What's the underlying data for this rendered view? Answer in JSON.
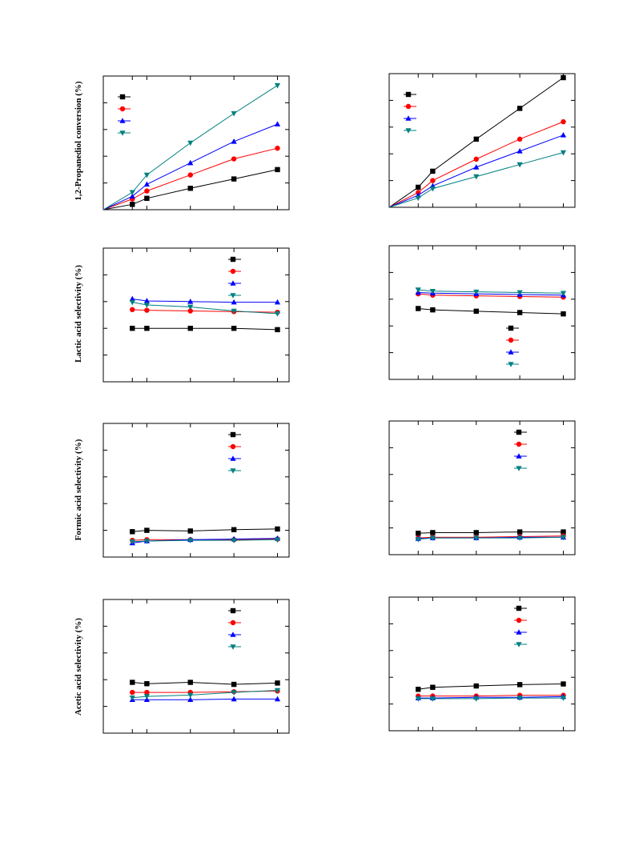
{
  "figure": {
    "series_colors": [
      "#000000",
      "#ff0000",
      "#0000ff",
      "#008080"
    ],
    "series_markers": [
      "square",
      "circle",
      "triangle-up",
      "triangle-down"
    ]
  },
  "chart_data": [
    {
      "type": "line",
      "ylabel": "1,2-Propanediol conversion (%)",
      "x": [
        1,
        1.5,
        3,
        4.5,
        6
      ],
      "xlim": [
        0,
        6.4
      ],
      "ylim": [
        0,
        100
      ],
      "legend": "top-left",
      "series": [
        {
          "values": [
            4,
            8.5,
            16,
            23,
            30
          ]
        },
        {
          "values": [
            8,
            14,
            26,
            38,
            46
          ]
        },
        {
          "values": [
            10,
            19,
            35,
            51,
            64
          ]
        },
        {
          "values": [
            13,
            26,
            50,
            72,
            93
          ]
        }
      ]
    },
    {
      "type": "line",
      "ylabel": "",
      "x": [
        1,
        1.5,
        3,
        4.5,
        6
      ],
      "xlim": [
        0,
        6.4
      ],
      "ylim": [
        0,
        100
      ],
      "legend": "top-left",
      "series": [
        {
          "values": [
            15,
            27,
            51,
            74,
            97
          ]
        },
        {
          "values": [
            11,
            20,
            36,
            51,
            64
          ]
        },
        {
          "values": [
            9,
            16,
            30,
            42,
            54
          ]
        },
        {
          "values": [
            7,
            14,
            23,
            32,
            41
          ]
        }
      ]
    },
    {
      "type": "line",
      "ylabel": "Lactic acid selectivity (%)",
      "x": [
        1,
        1.5,
        3,
        4.5,
        6
      ],
      "xlim": [
        0,
        6.4
      ],
      "ylim": [
        0,
        100
      ],
      "legend": "top-right",
      "series": [
        {
          "values": [
            40,
            40,
            40,
            40,
            39
          ]
        },
        {
          "values": [
            54,
            53.5,
            53,
            52.5,
            52
          ]
        },
        {
          "values": [
            62,
            60.5,
            60,
            59.5,
            59.5
          ]
        },
        {
          "values": [
            59.5,
            57.5,
            56,
            53,
            51
          ]
        }
      ]
    },
    {
      "type": "line",
      "ylabel": "",
      "x": [
        1,
        1.5,
        3,
        4.5,
        6
      ],
      "xlim": [
        0,
        6.4
      ],
      "ylim": [
        0,
        100
      ],
      "legend": "bottom-right",
      "series": [
        {
          "values": [
            53,
            52,
            51,
            50,
            49
          ]
        },
        {
          "values": [
            64,
            63,
            62.5,
            62,
            61.5
          ]
        },
        {
          "values": [
            65,
            64.5,
            64,
            63.5,
            63
          ]
        },
        {
          "values": [
            67,
            66,
            65.5,
            65,
            64.5
          ]
        }
      ]
    },
    {
      "type": "line",
      "ylabel": "Formic acid selectivity (%)",
      "x": [
        1,
        1.5,
        3,
        4.5,
        6
      ],
      "xlim": [
        0,
        6.4
      ],
      "ylim": [
        0,
        100
      ],
      "legend": "top-right",
      "series": [
        {
          "values": [
            19,
            20,
            19.5,
            20.5,
            21
          ]
        },
        {
          "values": [
            12.5,
            13,
            13,
            13,
            13.5
          ]
        },
        {
          "values": [
            10.5,
            12,
            13,
            13.5,
            14
          ]
        },
        {
          "values": [
            11.5,
            12,
            12.5,
            12.5,
            13
          ]
        }
      ]
    },
    {
      "type": "line",
      "ylabel": "",
      "x": [
        1,
        1.5,
        3,
        4.5,
        6
      ],
      "xlim": [
        0,
        6.4
      ],
      "ylim": [
        0,
        100
      ],
      "legend": "top-right",
      "series": [
        {
          "values": [
            16,
            16.5,
            16.5,
            17,
            17
          ]
        },
        {
          "values": [
            12.5,
            13,
            13,
            13.5,
            14
          ]
        },
        {
          "values": [
            12,
            12.5,
            12.5,
            13,
            13
          ]
        },
        {
          "values": [
            11.5,
            12.5,
            12.5,
            12.5,
            13
          ]
        }
      ]
    },
    {
      "type": "line",
      "ylabel": "Acetic acid selectivity (%)",
      "x": [
        1,
        1.5,
        3,
        4.5,
        6
      ],
      "xlim": [
        0,
        6.4
      ],
      "ylim": [
        0,
        100
      ],
      "legend": "top-right",
      "series": [
        {
          "values": [
            38,
            37,
            38,
            36.5,
            37.5
          ]
        },
        {
          "values": [
            30.5,
            30.5,
            30.5,
            31,
            31.5
          ]
        },
        {
          "values": [
            25,
            25,
            25,
            25.5,
            25.5
          ]
        },
        {
          "values": [
            26.5,
            27.5,
            28.5,
            30.5,
            32
          ]
        }
      ]
    },
    {
      "type": "line",
      "ylabel": "",
      "x": [
        1,
        1.5,
        3,
        4.5,
        6
      ],
      "xlim": [
        0,
        6.4
      ],
      "ylim": [
        0,
        100
      ],
      "legend": "top-right",
      "series": [
        {
          "values": [
            31,
            32.5,
            33.5,
            34.5,
            35
          ]
        },
        {
          "values": [
            26,
            26,
            26,
            26.5,
            26.5
          ]
        },
        {
          "values": [
            24.5,
            24.5,
            25,
            25,
            25.5
          ]
        },
        {
          "values": [
            24,
            24,
            24,
            24.5,
            24.5
          ]
        }
      ]
    }
  ]
}
